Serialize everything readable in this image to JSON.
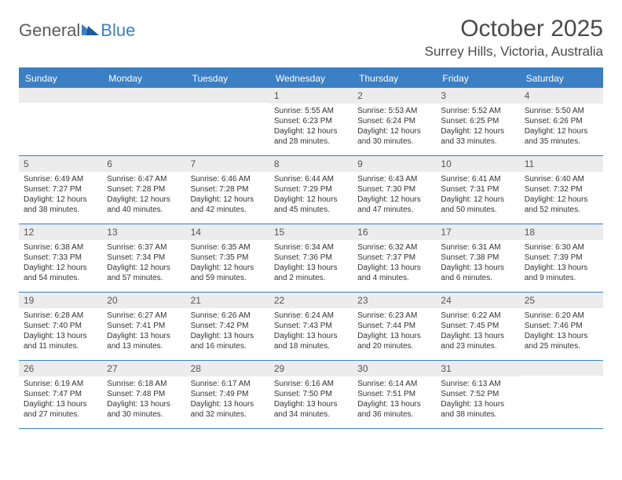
{
  "logo": {
    "text1": "General",
    "text2": "Blue"
  },
  "title": "October 2025",
  "subtitle": "Surrey Hills, Victoria, Australia",
  "colors": {
    "accent": "#3b7fc4",
    "dayhead_bg": "#3b7fc4",
    "dayhead_text": "#ffffff",
    "daynum_bg": "#ececec",
    "text": "#333333",
    "border": "#3b7fc4"
  },
  "dayheads": [
    "Sunday",
    "Monday",
    "Tuesday",
    "Wednesday",
    "Thursday",
    "Friday",
    "Saturday"
  ],
  "weeks": [
    [
      {
        "day": "",
        "sunrise": "",
        "sunset": "",
        "daylight1": "",
        "daylight2": ""
      },
      {
        "day": "",
        "sunrise": "",
        "sunset": "",
        "daylight1": "",
        "daylight2": ""
      },
      {
        "day": "",
        "sunrise": "",
        "sunset": "",
        "daylight1": "",
        "daylight2": ""
      },
      {
        "day": "1",
        "sunrise": "Sunrise: 5:55 AM",
        "sunset": "Sunset: 6:23 PM",
        "daylight1": "Daylight: 12 hours",
        "daylight2": "and 28 minutes."
      },
      {
        "day": "2",
        "sunrise": "Sunrise: 5:53 AM",
        "sunset": "Sunset: 6:24 PM",
        "daylight1": "Daylight: 12 hours",
        "daylight2": "and 30 minutes."
      },
      {
        "day": "3",
        "sunrise": "Sunrise: 5:52 AM",
        "sunset": "Sunset: 6:25 PM",
        "daylight1": "Daylight: 12 hours",
        "daylight2": "and 33 minutes."
      },
      {
        "day": "4",
        "sunrise": "Sunrise: 5:50 AM",
        "sunset": "Sunset: 6:26 PM",
        "daylight1": "Daylight: 12 hours",
        "daylight2": "and 35 minutes."
      }
    ],
    [
      {
        "day": "5",
        "sunrise": "Sunrise: 6:49 AM",
        "sunset": "Sunset: 7:27 PM",
        "daylight1": "Daylight: 12 hours",
        "daylight2": "and 38 minutes."
      },
      {
        "day": "6",
        "sunrise": "Sunrise: 6:47 AM",
        "sunset": "Sunset: 7:28 PM",
        "daylight1": "Daylight: 12 hours",
        "daylight2": "and 40 minutes."
      },
      {
        "day": "7",
        "sunrise": "Sunrise: 6:46 AM",
        "sunset": "Sunset: 7:28 PM",
        "daylight1": "Daylight: 12 hours",
        "daylight2": "and 42 minutes."
      },
      {
        "day": "8",
        "sunrise": "Sunrise: 6:44 AM",
        "sunset": "Sunset: 7:29 PM",
        "daylight1": "Daylight: 12 hours",
        "daylight2": "and 45 minutes."
      },
      {
        "day": "9",
        "sunrise": "Sunrise: 6:43 AM",
        "sunset": "Sunset: 7:30 PM",
        "daylight1": "Daylight: 12 hours",
        "daylight2": "and 47 minutes."
      },
      {
        "day": "10",
        "sunrise": "Sunrise: 6:41 AM",
        "sunset": "Sunset: 7:31 PM",
        "daylight1": "Daylight: 12 hours",
        "daylight2": "and 50 minutes."
      },
      {
        "day": "11",
        "sunrise": "Sunrise: 6:40 AM",
        "sunset": "Sunset: 7:32 PM",
        "daylight1": "Daylight: 12 hours",
        "daylight2": "and 52 minutes."
      }
    ],
    [
      {
        "day": "12",
        "sunrise": "Sunrise: 6:38 AM",
        "sunset": "Sunset: 7:33 PM",
        "daylight1": "Daylight: 12 hours",
        "daylight2": "and 54 minutes."
      },
      {
        "day": "13",
        "sunrise": "Sunrise: 6:37 AM",
        "sunset": "Sunset: 7:34 PM",
        "daylight1": "Daylight: 12 hours",
        "daylight2": "and 57 minutes."
      },
      {
        "day": "14",
        "sunrise": "Sunrise: 6:35 AM",
        "sunset": "Sunset: 7:35 PM",
        "daylight1": "Daylight: 12 hours",
        "daylight2": "and 59 minutes."
      },
      {
        "day": "15",
        "sunrise": "Sunrise: 6:34 AM",
        "sunset": "Sunset: 7:36 PM",
        "daylight1": "Daylight: 13 hours",
        "daylight2": "and 2 minutes."
      },
      {
        "day": "16",
        "sunrise": "Sunrise: 6:32 AM",
        "sunset": "Sunset: 7:37 PM",
        "daylight1": "Daylight: 13 hours",
        "daylight2": "and 4 minutes."
      },
      {
        "day": "17",
        "sunrise": "Sunrise: 6:31 AM",
        "sunset": "Sunset: 7:38 PM",
        "daylight1": "Daylight: 13 hours",
        "daylight2": "and 6 minutes."
      },
      {
        "day": "18",
        "sunrise": "Sunrise: 6:30 AM",
        "sunset": "Sunset: 7:39 PM",
        "daylight1": "Daylight: 13 hours",
        "daylight2": "and 9 minutes."
      }
    ],
    [
      {
        "day": "19",
        "sunrise": "Sunrise: 6:28 AM",
        "sunset": "Sunset: 7:40 PM",
        "daylight1": "Daylight: 13 hours",
        "daylight2": "and 11 minutes."
      },
      {
        "day": "20",
        "sunrise": "Sunrise: 6:27 AM",
        "sunset": "Sunset: 7:41 PM",
        "daylight1": "Daylight: 13 hours",
        "daylight2": "and 13 minutes."
      },
      {
        "day": "21",
        "sunrise": "Sunrise: 6:26 AM",
        "sunset": "Sunset: 7:42 PM",
        "daylight1": "Daylight: 13 hours",
        "daylight2": "and 16 minutes."
      },
      {
        "day": "22",
        "sunrise": "Sunrise: 6:24 AM",
        "sunset": "Sunset: 7:43 PM",
        "daylight1": "Daylight: 13 hours",
        "daylight2": "and 18 minutes."
      },
      {
        "day": "23",
        "sunrise": "Sunrise: 6:23 AM",
        "sunset": "Sunset: 7:44 PM",
        "daylight1": "Daylight: 13 hours",
        "daylight2": "and 20 minutes."
      },
      {
        "day": "24",
        "sunrise": "Sunrise: 6:22 AM",
        "sunset": "Sunset: 7:45 PM",
        "daylight1": "Daylight: 13 hours",
        "daylight2": "and 23 minutes."
      },
      {
        "day": "25",
        "sunrise": "Sunrise: 6:20 AM",
        "sunset": "Sunset: 7:46 PM",
        "daylight1": "Daylight: 13 hours",
        "daylight2": "and 25 minutes."
      }
    ],
    [
      {
        "day": "26",
        "sunrise": "Sunrise: 6:19 AM",
        "sunset": "Sunset: 7:47 PM",
        "daylight1": "Daylight: 13 hours",
        "daylight2": "and 27 minutes."
      },
      {
        "day": "27",
        "sunrise": "Sunrise: 6:18 AM",
        "sunset": "Sunset: 7:48 PM",
        "daylight1": "Daylight: 13 hours",
        "daylight2": "and 30 minutes."
      },
      {
        "day": "28",
        "sunrise": "Sunrise: 6:17 AM",
        "sunset": "Sunset: 7:49 PM",
        "daylight1": "Daylight: 13 hours",
        "daylight2": "and 32 minutes."
      },
      {
        "day": "29",
        "sunrise": "Sunrise: 6:16 AM",
        "sunset": "Sunset: 7:50 PM",
        "daylight1": "Daylight: 13 hours",
        "daylight2": "and 34 minutes."
      },
      {
        "day": "30",
        "sunrise": "Sunrise: 6:14 AM",
        "sunset": "Sunset: 7:51 PM",
        "daylight1": "Daylight: 13 hours",
        "daylight2": "and 36 minutes."
      },
      {
        "day": "31",
        "sunrise": "Sunrise: 6:13 AM",
        "sunset": "Sunset: 7:52 PM",
        "daylight1": "Daylight: 13 hours",
        "daylight2": "and 38 minutes."
      },
      {
        "day": "",
        "sunrise": "",
        "sunset": "",
        "daylight1": "",
        "daylight2": ""
      }
    ]
  ]
}
